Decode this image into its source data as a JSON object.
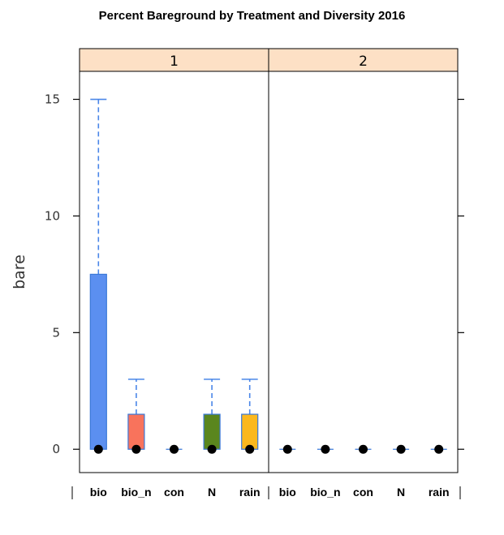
{
  "chart_data": {
    "type": "box",
    "title": "Percent Bareground by Treatment and Diversity 2016",
    "ylabel": "bare",
    "xlabel": "",
    "ylim": [
      -1,
      16.2
    ],
    "yticks": [
      0,
      5,
      10,
      15
    ],
    "panels": [
      {
        "label": "1",
        "boxes": [
          {
            "category": "bio",
            "min": 0,
            "q1": 0,
            "median": 0,
            "q3": 7.5,
            "max": 15,
            "color": "#5b8ff0"
          },
          {
            "category": "bio_n",
            "min": 0,
            "q1": 0,
            "median": 0,
            "q3": 1.5,
            "max": 3,
            "color": "#f8735c"
          },
          {
            "category": "con",
            "min": 0,
            "q1": 0,
            "median": 0,
            "q3": 0,
            "max": 0,
            "color": "#5b8ff0"
          },
          {
            "category": "N",
            "min": 0,
            "q1": 0,
            "median": 0,
            "q3": 1.5,
            "max": 3,
            "color": "#5a861e"
          },
          {
            "category": "rain",
            "min": 0,
            "q1": 0,
            "median": 0,
            "q3": 1.5,
            "max": 3,
            "color": "#fbb81e"
          }
        ]
      },
      {
        "label": "2",
        "boxes": [
          {
            "category": "bio",
            "min": 0,
            "q1": 0,
            "median": 0,
            "q3": 0,
            "max": 0,
            "color": "#5b8ff0"
          },
          {
            "category": "bio_n",
            "min": 0,
            "q1": 0,
            "median": 0,
            "q3": 0,
            "max": 0,
            "color": "#5b8ff0"
          },
          {
            "category": "con",
            "min": 0,
            "q1": 0,
            "median": 0,
            "q3": 0,
            "max": 0,
            "color": "#5b8ff0"
          },
          {
            "category": "N",
            "min": 0,
            "q1": 0,
            "median": 0,
            "q3": 0,
            "max": 0,
            "color": "#5b8ff0"
          },
          {
            "category": "rain",
            "min": 0,
            "q1": 0,
            "median": 0,
            "q3": 0,
            "max": 0,
            "color": "#5b8ff0"
          }
        ]
      }
    ],
    "whisker_color": "#4a86e8",
    "box_border_color": "#3a78d8",
    "strip_color": "#fde0c5",
    "grid": false,
    "legend": "none"
  }
}
